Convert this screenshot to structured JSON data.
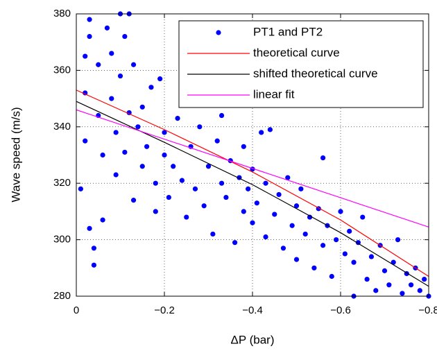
{
  "chart_data": {
    "type": "scatter",
    "xlabel": "ΔP (bar)",
    "ylabel": "Wave speed (m/s)",
    "xlim": [
      0,
      -0.8
    ],
    "ylim": [
      280,
      380
    ],
    "xticks": [
      0,
      {
        "value": -0.2,
        "label": "−0.2"
      },
      {
        "value": -0.4,
        "label": "−0.4"
      },
      {
        "value": -0.6,
        "label": "−0.6"
      },
      {
        "value": -0.8,
        "label": "−0.8"
      }
    ],
    "yticks": [
      280,
      300,
      320,
      340,
      360,
      380
    ],
    "grid": true,
    "legend": "upper right",
    "series": [
      {
        "name": "PT1 and PT2",
        "type": "scatter",
        "color": "#0000ff",
        "x": [
          -0.01,
          -0.02,
          -0.02,
          -0.02,
          -0.03,
          -0.03,
          -0.04,
          -0.04,
          -0.03,
          -0.05,
          -0.05,
          -0.06,
          -0.06,
          -0.07,
          -0.08,
          -0.08,
          -0.09,
          -0.09,
          -0.1,
          -0.1,
          -0.11,
          -0.11,
          -0.12,
          -0.12,
          -0.13,
          -0.13,
          -0.14,
          -0.15,
          -0.15,
          -0.16,
          -0.17,
          -0.18,
          -0.18,
          -0.19,
          -0.2,
          -0.2,
          -0.21,
          -0.22,
          -0.23,
          -0.24,
          -0.24,
          -0.25,
          -0.26,
          -0.27,
          -0.28,
          -0.28,
          -0.29,
          -0.3,
          -0.31,
          -0.32,
          -0.33,
          -0.33,
          -0.34,
          -0.35,
          -0.36,
          -0.37,
          -0.38,
          -0.38,
          -0.39,
          -0.4,
          -0.4,
          -0.41,
          -0.42,
          -0.43,
          -0.43,
          -0.44,
          -0.45,
          -0.46,
          -0.47,
          -0.48,
          -0.49,
          -0.5,
          -0.5,
          -0.51,
          -0.52,
          -0.53,
          -0.54,
          -0.55,
          -0.56,
          -0.56,
          -0.57,
          -0.58,
          -0.59,
          -0.6,
          -0.61,
          -0.62,
          -0.63,
          -0.63,
          -0.64,
          -0.65,
          -0.66,
          -0.67,
          -0.68,
          -0.69,
          -0.7,
          -0.71,
          -0.72,
          -0.73,
          -0.74,
          -0.75,
          -0.76,
          -0.77,
          -0.78,
          -0.79,
          -0.8
        ],
        "values": [
          318,
          335,
          352,
          365,
          372,
          304,
          291,
          297,
          378,
          362,
          344,
          307,
          330,
          375,
          350,
          366,
          323,
          338,
          380,
          358,
          331,
          372,
          345,
          380,
          314,
          362,
          340,
          326,
          347,
          333,
          354,
          320,
          310,
          357,
          330,
          338,
          315,
          326,
          343,
          321,
          351,
          308,
          333,
          318,
          340,
          348,
          312,
          326,
          302,
          335,
          320,
          344,
          315,
          328,
          299,
          322,
          310,
          333,
          318,
          306,
          325,
          313,
          338,
          301,
          320,
          339,
          309,
          316,
          297,
          322,
          305,
          312,
          293,
          318,
          302,
          308,
          290,
          311,
          298,
          329,
          305,
          287,
          300,
          310,
          295,
          303,
          280,
          292,
          299,
          308,
          286,
          294,
          282,
          298,
          289,
          284,
          292,
          300,
          281,
          288,
          284,
          290,
          282,
          286,
          280
        ]
      },
      {
        "name": "theoretical curve",
        "type": "line",
        "color": "#ff0000",
        "x": [
          0,
          -0.2,
          -0.4,
          -0.6,
          -0.8
        ],
        "values": [
          353,
          339,
          324,
          307,
          287
        ]
      },
      {
        "name": "shifted theoretical curve",
        "type": "line",
        "color": "#000000",
        "x": [
          0,
          -0.2,
          -0.4,
          -0.6,
          -0.8
        ],
        "values": [
          349,
          334.5,
          319.5,
          302.5,
          283.5
        ]
      },
      {
        "name": "linear fit",
        "type": "line",
        "color": "#ff00ff",
        "x": [
          0,
          -0.8
        ],
        "values": [
          346,
          304.5
        ]
      }
    ]
  }
}
